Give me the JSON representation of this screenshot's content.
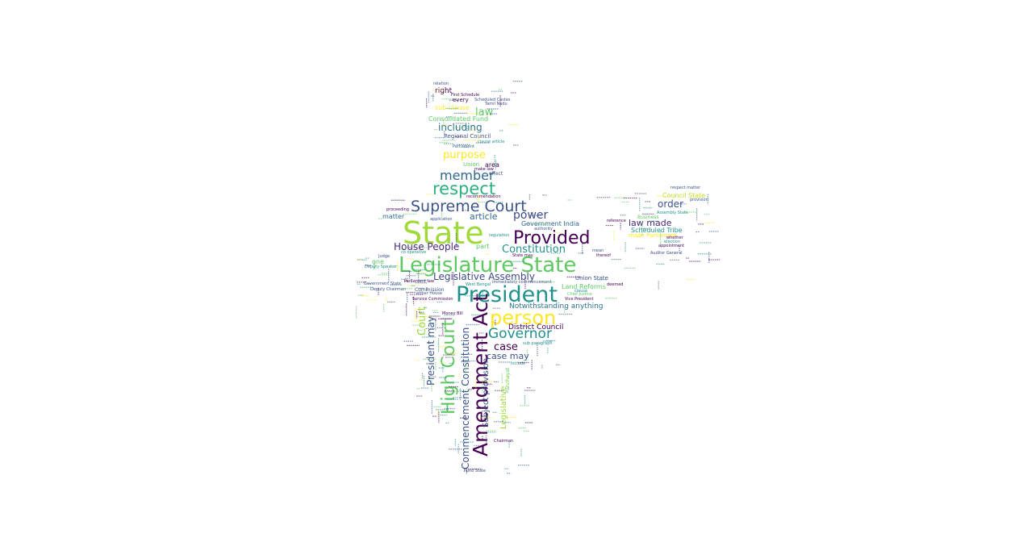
{
  "word_cloud": {
    "words": [
      {
        "text": "State",
        "color": "#a0da39"
      },
      {
        "text": "Legislature State",
        "color": "#5ec962"
      },
      {
        "text": "President",
        "color": "#21918c"
      },
      {
        "text": "Provided",
        "color": "#440154"
      },
      {
        "text": "Supreme Court",
        "color": "#3b528b"
      },
      {
        "text": "respect",
        "color": "#2cb17e"
      },
      {
        "text": "member",
        "color": "#31688e"
      },
      {
        "text": "person",
        "color": "#fde725"
      },
      {
        "text": "Amendment Act",
        "color": "#440154"
      },
      {
        "text": "High Court",
        "color": "#5ec962"
      },
      {
        "text": "Governor",
        "color": "#21918c"
      },
      {
        "text": "Commencement Constitution",
        "color": "#3b528b"
      },
      {
        "text": "House People",
        "color": "#482878"
      },
      {
        "text": "Constitution",
        "color": "#21918c"
      },
      {
        "text": "power",
        "color": "#3e4a89"
      },
      {
        "text": "article",
        "color": "#31688e"
      },
      {
        "text": "Legislative Assembly",
        "color": "#3e4a89"
      },
      {
        "text": "including",
        "color": "#2c728e"
      },
      {
        "text": "purpose",
        "color": "#fde725"
      },
      {
        "text": "law",
        "color": "#5ec962"
      },
      {
        "text": "case",
        "color": "#440154"
      },
      {
        "text": "case may",
        "color": "#3b528b"
      },
      {
        "text": "President may",
        "color": "#3b528b"
      },
      {
        "text": "Court",
        "color": "#a0da39"
      },
      {
        "text": "order",
        "color": "#3b528b"
      },
      {
        "text": "law made",
        "color": "#482878"
      },
      {
        "text": "Notwithstanding anything",
        "color": "#2c728e"
      },
      {
        "text": "Consolidated Fund",
        "color": "#5ec962"
      },
      {
        "text": "sub clause",
        "color": "#fde725"
      },
      {
        "text": "right",
        "color": "#440154"
      },
      {
        "text": "Council State",
        "color": "#bddf26"
      },
      {
        "text": "Scheduled Tribe",
        "color": "#21918c"
      },
      {
        "text": "Subject provision",
        "color": "#3b528b"
      },
      {
        "text": "Legislative",
        "color": "#a0da39"
      },
      {
        "text": "District Council",
        "color": "#440154"
      },
      {
        "text": "Government India",
        "color": "#31688e"
      },
      {
        "text": "Land Reforms",
        "color": "#5ec962"
      },
      {
        "text": "Regional Council",
        "color": "#3b528b"
      },
      {
        "text": "matter",
        "color": "#2c728e"
      },
      {
        "text": "area",
        "color": "#440154"
      },
      {
        "text": "Union State",
        "color": "#3e4a89"
      },
      {
        "text": "made Parliament",
        "color": "#fde725"
      },
      {
        "text": "Union",
        "color": "#5ec962"
      },
      {
        "text": "every",
        "color": "#440154"
      },
      {
        "text": "relation",
        "color": "#3b528b"
      },
      {
        "text": "Parliament",
        "color": "#31688e"
      },
      {
        "text": "reference",
        "color": "#440154"
      },
      {
        "text": "Commission",
        "color": "#3b528b"
      },
      {
        "text": "Service Commission",
        "color": "#440154"
      },
      {
        "text": "Government State",
        "color": "#3b528b"
      },
      {
        "text": "Deputy Speaker",
        "color": "#21918c"
      },
      {
        "text": "Deputy Chairman",
        "color": "#3b528b"
      },
      {
        "text": "Vice President",
        "color": "#440154"
      },
      {
        "text": "West Bengal",
        "color": "#21918c"
      },
      {
        "text": "sub paragraph",
        "color": "#21918c"
      },
      {
        "text": "Tamil Nadu",
        "color": "#3e4a89"
      },
      {
        "text": "one",
        "color": "#5ec962"
      },
      {
        "text": "election",
        "color": "#21918c"
      },
      {
        "text": "appointment",
        "color": "#440154"
      },
      {
        "text": "provision",
        "color": "#3b528b"
      },
      {
        "text": "respect matter",
        "color": "#3b528b"
      },
      {
        "text": "Assembly State",
        "color": "#21918c"
      },
      {
        "text": "Auditor General",
        "color": "#3e4a89"
      },
      {
        "text": "Scheduled Castes",
        "color": "#3b528b"
      },
      {
        "text": "First Schedule",
        "color": "#440154"
      },
      {
        "text": "clause article",
        "color": "#21918c"
      },
      {
        "text": "make law",
        "color": "#440154"
      },
      {
        "text": "effect",
        "color": "#3b528b"
      },
      {
        "text": "recommendation",
        "color": "#440154"
      },
      {
        "text": "authority",
        "color": "#3b528b"
      },
      {
        "text": "regulation",
        "color": "#21918c"
      },
      {
        "text": "application",
        "color": "#3b528b"
      },
      {
        "text": "proceeding",
        "color": "#440154"
      },
      {
        "text": "Parliament law",
        "color": "#440154"
      },
      {
        "text": "immediately commencement",
        "color": "#3b528b"
      },
      {
        "text": "deemed",
        "color": "#440154"
      },
      {
        "text": "thereof",
        "color": "#440154"
      },
      {
        "text": "mean",
        "color": "#3b528b"
      },
      {
        "text": "clause",
        "color": "#21918c"
      },
      {
        "text": "include",
        "color": "#21918c"
      },
      {
        "text": "Panchayat",
        "color": "#5ec962"
      },
      {
        "text": "State may",
        "color": "#440154"
      },
      {
        "text": "part",
        "color": "#5ec962"
      },
      {
        "text": "whether",
        "color": "#440154"
      },
      {
        "text": "Business",
        "color": "#5ec962"
      },
      {
        "text": "Money Bill",
        "color": "#440154"
      },
      {
        "text": "Judge",
        "color": "#3b528b"
      },
      {
        "text": "either House",
        "color": "#3b528b"
      },
      {
        "text": "Chief Justice",
        "color": "#5ec962"
      },
      {
        "text": "co operative",
        "color": "#21918c"
      },
      {
        "text": "Fund State",
        "color": "#3b528b"
      },
      {
        "text": "Chairman",
        "color": "#440154"
      }
    ]
  }
}
